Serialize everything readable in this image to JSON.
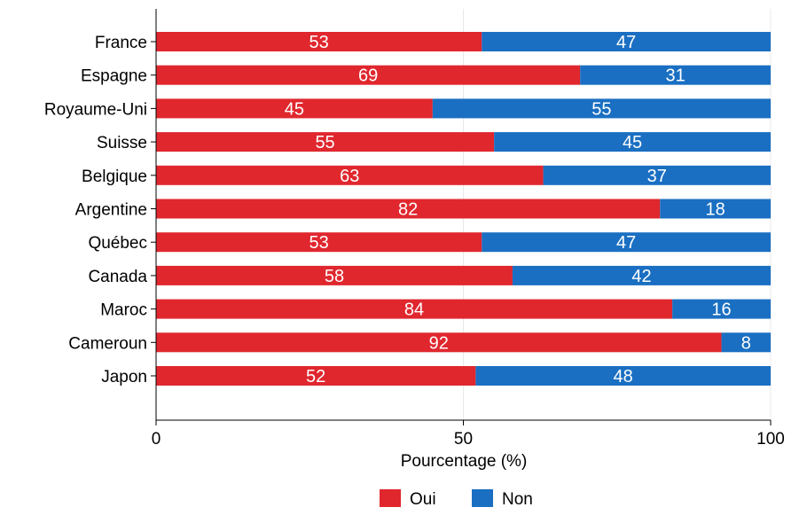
{
  "chart_data": {
    "type": "bar",
    "orientation": "horizontal",
    "stacked": true,
    "categories": [
      "France",
      "Espagne",
      "Royaume-Uni",
      "Suisse",
      "Belgique",
      "Argentine",
      "Québec",
      "Canada",
      "Maroc",
      "Cameroun",
      "Japon"
    ],
    "series": [
      {
        "name": "Oui",
        "color": "#e0272e",
        "values": [
          53,
          69,
          45,
          55,
          63,
          82,
          53,
          58,
          84,
          92,
          52
        ]
      },
      {
        "name": "Non",
        "color": "#1a6fc2",
        "values": [
          47,
          31,
          55,
          45,
          37,
          18,
          47,
          42,
          16,
          8,
          48
        ]
      }
    ],
    "xlabel": "Pourcentage (%)",
    "ylabel": "",
    "xlim": [
      0,
      100
    ],
    "xticks": [
      "0",
      "50",
      "100"
    ],
    "grid": "vertical gridlines at ticks",
    "legend_position": "bottom-center"
  }
}
